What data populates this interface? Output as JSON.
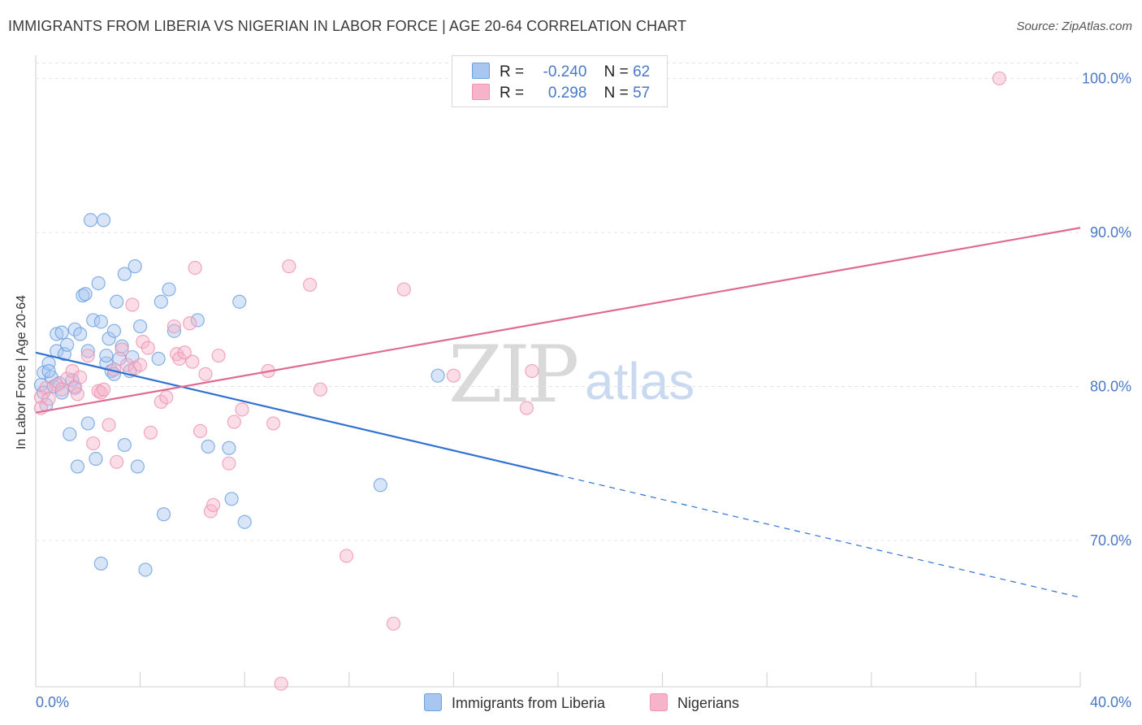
{
  "header": {
    "title": "IMMIGRANTS FROM LIBERIA VS NIGERIAN IN LABOR FORCE | AGE 20-64 CORRELATION CHART",
    "source": "Source: ZipAtlas.com"
  },
  "watermark": {
    "zip": "ZIP",
    "atlas": "atlas"
  },
  "legend": {
    "rows": [
      {
        "r_label": "R =",
        "r_value": "-0.240",
        "n_label": "N =",
        "n_value": "62",
        "color": "#a8c6f0"
      },
      {
        "r_label": "R =",
        "r_value": "0.298",
        "n_label": "N =",
        "n_value": "57",
        "color": "#f6b3c9"
      }
    ]
  },
  "chart_data": {
    "type": "scatter",
    "ylabel": "In Labor Force | Age 20-64",
    "xlim": [
      0,
      40
    ],
    "ylim": [
      60.5,
      101.5
    ],
    "x_tick_labels": {
      "min": "0.0%",
      "max": "40.0%"
    },
    "y_ticks": [
      {
        "value": 70,
        "label": "70.0%"
      },
      {
        "value": 80,
        "label": "80.0%"
      },
      {
        "value": 90,
        "label": "90.0%"
      },
      {
        "value": 100,
        "label": "100.0%"
      }
    ],
    "grid": true,
    "series": [
      {
        "name": "Immigrants from Liberia",
        "color": "#6a9fe0",
        "fill": "#a8c6f0",
        "line_color": "#2f72d2",
        "trend": {
          "x0": 0,
          "y0": 82.2,
          "x1": 40,
          "y1": 66.3,
          "solid_until": 20
        },
        "points": [
          [
            0.2,
            80.1
          ],
          [
            0.3,
            79.6
          ],
          [
            0.3,
            80.9
          ],
          [
            0.4,
            78.8
          ],
          [
            0.5,
            81.5
          ],
          [
            0.6,
            80.6
          ],
          [
            0.7,
            80.0
          ],
          [
            0.8,
            83.4
          ],
          [
            0.8,
            82.3
          ],
          [
            0.9,
            80.2
          ],
          [
            1.0,
            79.6
          ],
          [
            1.0,
            83.5
          ],
          [
            1.1,
            82.1
          ],
          [
            1.2,
            82.7
          ],
          [
            1.3,
            76.9
          ],
          [
            1.4,
            80.4
          ],
          [
            1.5,
            79.9
          ],
          [
            1.5,
            83.7
          ],
          [
            1.6,
            74.8
          ],
          [
            1.7,
            83.4
          ],
          [
            1.8,
            85.9
          ],
          [
            1.9,
            86.0
          ],
          [
            2.0,
            82.3
          ],
          [
            2.0,
            77.6
          ],
          [
            2.1,
            90.8
          ],
          [
            2.2,
            84.3
          ],
          [
            2.3,
            75.3
          ],
          [
            2.4,
            86.7
          ],
          [
            2.5,
            84.2
          ],
          [
            2.5,
            68.5
          ],
          [
            2.6,
            90.8
          ],
          [
            2.7,
            81.5
          ],
          [
            2.8,
            83.1
          ],
          [
            2.9,
            81.0
          ],
          [
            3.0,
            80.8
          ],
          [
            3.0,
            83.6
          ],
          [
            3.1,
            85.5
          ],
          [
            3.2,
            81.8
          ],
          [
            3.3,
            82.6
          ],
          [
            3.4,
            76.2
          ],
          [
            3.4,
            87.3
          ],
          [
            3.6,
            81.0
          ],
          [
            3.7,
            81.9
          ],
          [
            3.8,
            87.8
          ],
          [
            3.9,
            74.8
          ],
          [
            4.0,
            83.9
          ],
          [
            4.2,
            68.1
          ],
          [
            4.7,
            81.8
          ],
          [
            4.8,
            85.5
          ],
          [
            4.9,
            71.7
          ],
          [
            5.1,
            86.3
          ],
          [
            5.3,
            83.6
          ],
          [
            6.2,
            84.3
          ],
          [
            6.6,
            76.1
          ],
          [
            7.4,
            76.0
          ],
          [
            7.5,
            72.7
          ],
          [
            7.8,
            85.5
          ],
          [
            8.0,
            71.2
          ],
          [
            13.2,
            73.6
          ],
          [
            15.4,
            80.7
          ],
          [
            0.5,
            81.0
          ],
          [
            2.7,
            82.0
          ]
        ]
      },
      {
        "name": "Nigerians",
        "color": "#ee93b3",
        "fill": "#f6b3c9",
        "line_color": "#e06a94",
        "trend": {
          "x0": 0,
          "y0": 78.3,
          "x1": 40,
          "y1": 90.3,
          "solid_until": 40
        },
        "points": [
          [
            0.2,
            79.3
          ],
          [
            0.2,
            78.6
          ],
          [
            0.4,
            79.9
          ],
          [
            0.5,
            79.2
          ],
          [
            0.8,
            80.1
          ],
          [
            1.0,
            79.8
          ],
          [
            1.2,
            80.5
          ],
          [
            1.4,
            81.0
          ],
          [
            1.5,
            80.0
          ],
          [
            1.6,
            79.5
          ],
          [
            1.7,
            80.6
          ],
          [
            2.0,
            82.0
          ],
          [
            2.2,
            76.3
          ],
          [
            2.4,
            79.7
          ],
          [
            2.5,
            79.6
          ],
          [
            2.6,
            79.8
          ],
          [
            2.8,
            77.5
          ],
          [
            3.0,
            81.1
          ],
          [
            3.1,
            75.1
          ],
          [
            3.3,
            82.4
          ],
          [
            3.5,
            81.4
          ],
          [
            3.7,
            85.3
          ],
          [
            3.8,
            81.2
          ],
          [
            4.0,
            81.4
          ],
          [
            4.1,
            82.9
          ],
          [
            4.3,
            82.5
          ],
          [
            4.4,
            77.0
          ],
          [
            4.8,
            79.0
          ],
          [
            5.0,
            79.3
          ],
          [
            5.3,
            83.9
          ],
          [
            5.4,
            82.1
          ],
          [
            5.5,
            81.8
          ],
          [
            5.7,
            82.2
          ],
          [
            5.9,
            84.1
          ],
          [
            6.0,
            81.6
          ],
          [
            6.1,
            87.7
          ],
          [
            6.3,
            77.1
          ],
          [
            6.5,
            80.8
          ],
          [
            6.7,
            71.9
          ],
          [
            6.8,
            72.3
          ],
          [
            7.0,
            82.0
          ],
          [
            7.4,
            75.0
          ],
          [
            7.6,
            77.7
          ],
          [
            7.9,
            78.5
          ],
          [
            8.9,
            81.0
          ],
          [
            9.1,
            77.6
          ],
          [
            9.4,
            60.7
          ],
          [
            9.7,
            87.8
          ],
          [
            10.5,
            86.6
          ],
          [
            10.9,
            79.8
          ],
          [
            11.9,
            69.0
          ],
          [
            13.7,
            64.6
          ],
          [
            14.1,
            86.3
          ],
          [
            16.0,
            80.7
          ],
          [
            18.8,
            78.6
          ],
          [
            19.0,
            81.0
          ],
          [
            36.9,
            100.0
          ]
        ]
      }
    ]
  }
}
